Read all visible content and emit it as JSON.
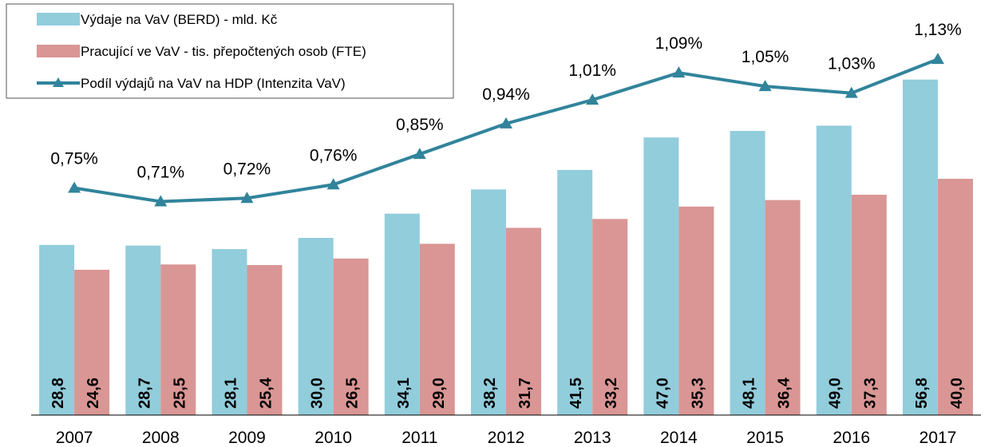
{
  "chart_data": {
    "type": "bar",
    "categories": [
      "2007",
      "2008",
      "2009",
      "2010",
      "2011",
      "2012",
      "2013",
      "2014",
      "2015",
      "2016",
      "2017"
    ],
    "series": [
      {
        "name": "Výdaje na VaV (BERD) - mld. Kč",
        "color": "#92cddc",
        "values": [
          28.8,
          28.7,
          28.1,
          30.0,
          34.1,
          38.2,
          41.5,
          47.0,
          48.1,
          49.0,
          56.8
        ],
        "value_labels": [
          "28,8",
          "28,7",
          "28,1",
          "30,0",
          "34,1",
          "38,2",
          "41,5",
          "47,0",
          "48,1",
          "49,0",
          "56,8"
        ]
      },
      {
        "name": "Pracující ve VaV - tis. přepočtených osob (FTE)",
        "color": "#d99694",
        "values": [
          24.6,
          25.5,
          25.4,
          26.5,
          29.0,
          31.7,
          33.2,
          35.3,
          36.4,
          37.3,
          40.0
        ],
        "value_labels": [
          "24,6",
          "25,5",
          "25,4",
          "26,5",
          "29,0",
          "31,7",
          "33,2",
          "35,3",
          "36,4",
          "37,3",
          "40,0"
        ]
      },
      {
        "name": "Podíl výdajů na VaV na HDP (Intenzita VaV)",
        "color": "#31849b",
        "type": "line",
        "axis": "y2",
        "values": [
          0.75,
          0.71,
          0.72,
          0.76,
          0.85,
          0.94,
          1.01,
          1.09,
          1.05,
          1.03,
          1.13
        ],
        "value_labels": [
          "0,75%",
          "0,71%",
          "0,72%",
          "0,76%",
          "0,85%",
          "0,94%",
          "1,01%",
          "1,09%",
          "1,05%",
          "1,03%",
          "1,13%"
        ]
      }
    ],
    "ylim": [
      0,
      70
    ],
    "y2lim": [
      0.08,
      1.3
    ],
    "legend": "top-left"
  }
}
